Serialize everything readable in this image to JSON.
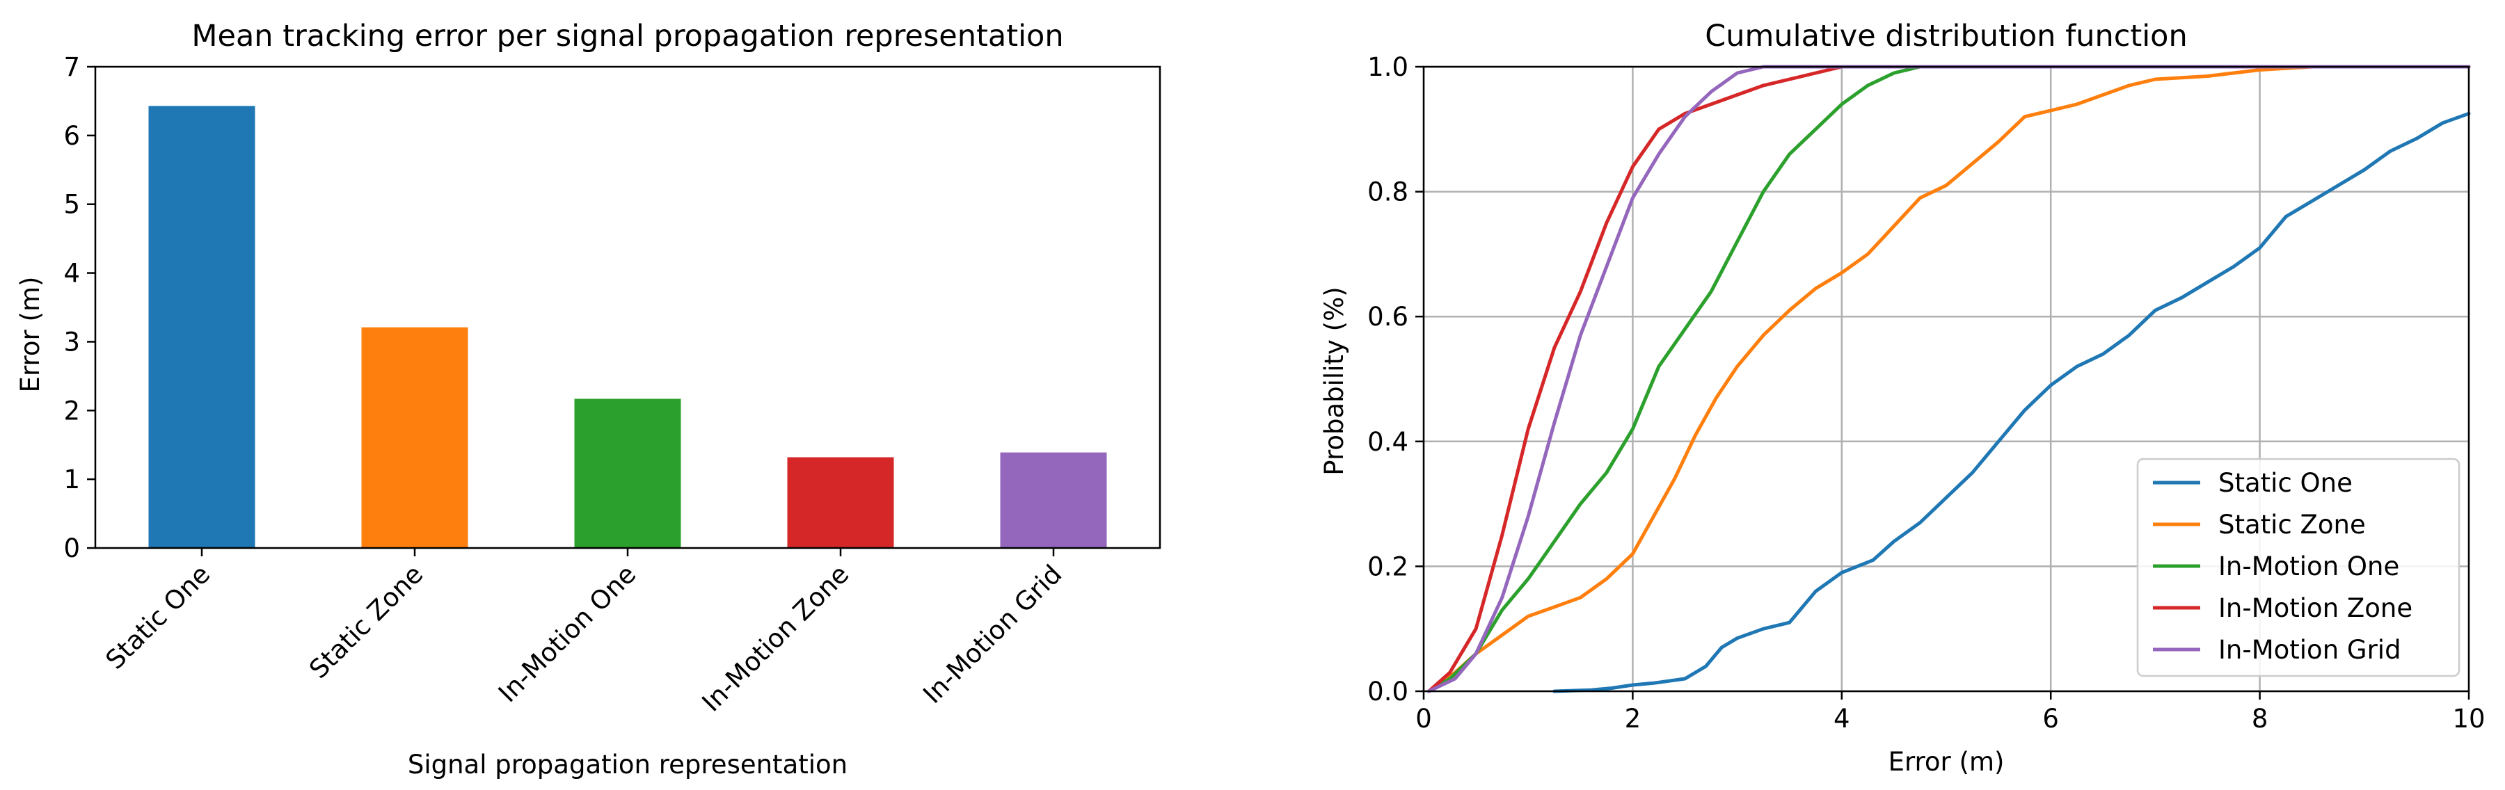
{
  "chart_data": [
    {
      "type": "bar",
      "title": "Mean tracking error per signal propagation representation",
      "xlabel": "Signal propagation representation",
      "ylabel": "Error (m)",
      "ylim": [
        0,
        7
      ],
      "yticks": [
        0,
        1,
        2,
        3,
        4,
        5,
        6,
        7
      ],
      "categories": [
        "Static One",
        "Static Zone",
        "In-Motion One",
        "In-Motion Zone",
        "In-Motion Grid"
      ],
      "values": [
        6.43,
        3.21,
        2.17,
        1.32,
        1.39
      ],
      "colors": [
        "#1f77b4",
        "#ff7f0e",
        "#2ca02c",
        "#d62728",
        "#9467bd"
      ],
      "grid": false
    },
    {
      "type": "line",
      "title": "Cumulative distribution function",
      "xlabel": "Error (m)",
      "ylabel": "Probability (%)",
      "xlim": [
        0,
        10
      ],
      "ylim": [
        0,
        1.0
      ],
      "xticks": [
        0,
        2,
        4,
        6,
        8,
        10
      ],
      "yticks": [
        0.0,
        0.2,
        0.4,
        0.6,
        0.8,
        1.0
      ],
      "grid": true,
      "legend_position": "bottom-right",
      "series": [
        {
          "name": "Static One",
          "color": "#1f77b4",
          "points": [
            [
              1.25,
              0
            ],
            [
              1.6,
              0.002
            ],
            [
              1.8,
              0.005
            ],
            [
              2.0,
              0.01
            ],
            [
              2.2,
              0.013
            ],
            [
              2.5,
              0.02
            ],
            [
              2.7,
              0.04
            ],
            [
              2.85,
              0.07
            ],
            [
              3.0,
              0.085
            ],
            [
              3.25,
              0.1
            ],
            [
              3.5,
              0.11
            ],
            [
              3.75,
              0.16
            ],
            [
              4.0,
              0.19
            ],
            [
              4.3,
              0.21
            ],
            [
              4.5,
              0.24
            ],
            [
              4.75,
              0.27
            ],
            [
              5.0,
              0.31
            ],
            [
              5.25,
              0.35
            ],
            [
              5.5,
              0.4
            ],
            [
              5.75,
              0.45
            ],
            [
              6.0,
              0.49
            ],
            [
              6.25,
              0.52
            ],
            [
              6.5,
              0.54
            ],
            [
              6.75,
              0.57
            ],
            [
              7.0,
              0.61
            ],
            [
              7.25,
              0.63
            ],
            [
              7.5,
              0.655
            ],
            [
              7.75,
              0.68
            ],
            [
              8.0,
              0.71
            ],
            [
              8.25,
              0.76
            ],
            [
              8.5,
              0.785
            ],
            [
              8.75,
              0.81
            ],
            [
              9.0,
              0.835
            ],
            [
              9.25,
              0.865
            ],
            [
              9.5,
              0.885
            ],
            [
              9.75,
              0.91
            ],
            [
              10.0,
              0.925
            ]
          ]
        },
        {
          "name": "Static Zone",
          "color": "#ff7f0e",
          "points": [
            [
              0.05,
              0
            ],
            [
              0.3,
              0.03
            ],
            [
              0.5,
              0.06
            ],
            [
              0.75,
              0.09
            ],
            [
              1.0,
              0.12
            ],
            [
              1.25,
              0.135
            ],
            [
              1.5,
              0.15
            ],
            [
              1.75,
              0.18
            ],
            [
              2.0,
              0.22
            ],
            [
              2.2,
              0.28
            ],
            [
              2.4,
              0.34
            ],
            [
              2.6,
              0.41
            ],
            [
              2.8,
              0.47
            ],
            [
              3.0,
              0.52
            ],
            [
              3.25,
              0.57
            ],
            [
              3.5,
              0.61
            ],
            [
              3.75,
              0.645
            ],
            [
              4.0,
              0.67
            ],
            [
              4.25,
              0.7
            ],
            [
              4.5,
              0.745
            ],
            [
              4.75,
              0.79
            ],
            [
              5.0,
              0.81
            ],
            [
              5.25,
              0.845
            ],
            [
              5.5,
              0.88
            ],
            [
              5.75,
              0.92
            ],
            [
              6.0,
              0.93
            ],
            [
              6.25,
              0.94
            ],
            [
              6.5,
              0.955
            ],
            [
              6.75,
              0.97
            ],
            [
              7.0,
              0.98
            ],
            [
              7.5,
              0.985
            ],
            [
              8.0,
              0.995
            ],
            [
              8.5,
              1.0
            ],
            [
              10.0,
              1.0
            ]
          ]
        },
        {
          "name": "In-Motion One",
          "color": "#2ca02c",
          "points": [
            [
              0.05,
              0
            ],
            [
              0.25,
              0.02
            ],
            [
              0.5,
              0.06
            ],
            [
              0.75,
              0.13
            ],
            [
              1.0,
              0.18
            ],
            [
              1.25,
              0.24
            ],
            [
              1.5,
              0.3
            ],
            [
              1.75,
              0.35
            ],
            [
              2.0,
              0.42
            ],
            [
              2.25,
              0.52
            ],
            [
              2.5,
              0.58
            ],
            [
              2.75,
              0.64
            ],
            [
              3.0,
              0.72
            ],
            [
              3.25,
              0.8
            ],
            [
              3.5,
              0.86
            ],
            [
              3.75,
              0.9
            ],
            [
              4.0,
              0.94
            ],
            [
              4.25,
              0.97
            ],
            [
              4.5,
              0.99
            ],
            [
              4.75,
              1.0
            ],
            [
              10.0,
              1.0
            ]
          ]
        },
        {
          "name": "In-Motion Zone",
          "color": "#d62728",
          "points": [
            [
              0.05,
              0
            ],
            [
              0.25,
              0.03
            ],
            [
              0.5,
              0.1
            ],
            [
              0.75,
              0.25
            ],
            [
              1.0,
              0.42
            ],
            [
              1.25,
              0.55
            ],
            [
              1.5,
              0.64
            ],
            [
              1.75,
              0.75
            ],
            [
              2.0,
              0.84
            ],
            [
              2.25,
              0.9
            ],
            [
              2.5,
              0.925
            ],
            [
              2.75,
              0.94
            ],
            [
              3.0,
              0.955
            ],
            [
              3.25,
              0.97
            ],
            [
              3.5,
              0.98
            ],
            [
              3.75,
              0.99
            ],
            [
              4.0,
              1.0
            ],
            [
              10.0,
              1.0
            ]
          ]
        },
        {
          "name": "In-Motion Grid",
          "color": "#9467bd",
          "points": [
            [
              0.05,
              0
            ],
            [
              0.3,
              0.02
            ],
            [
              0.5,
              0.06
            ],
            [
              0.75,
              0.15
            ],
            [
              1.0,
              0.28
            ],
            [
              1.25,
              0.43
            ],
            [
              1.5,
              0.57
            ],
            [
              1.75,
              0.68
            ],
            [
              2.0,
              0.79
            ],
            [
              2.25,
              0.86
            ],
            [
              2.5,
              0.92
            ],
            [
              2.75,
              0.96
            ],
            [
              3.0,
              0.99
            ],
            [
              3.25,
              1.0
            ],
            [
              10.0,
              1.0
            ]
          ]
        }
      ]
    }
  ]
}
